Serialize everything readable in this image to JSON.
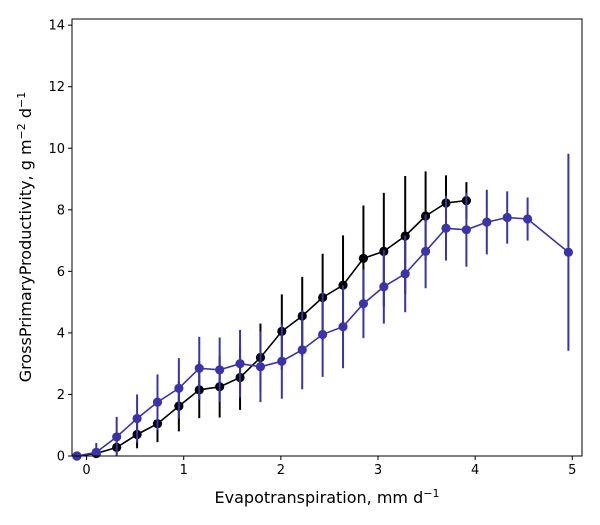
{
  "chart_data": {
    "type": "line",
    "title": "",
    "xlabel": "Evapotranspiration,  mm d",
    "xlabel_sup": "−1",
    "ylabel": "GrossPrimaryProductivity,  g m",
    "ylabel_sup1": "−2",
    "ylabel_mid": " d",
    "ylabel_sup2": "−1",
    "xlim": [
      -0.15,
      5.1
    ],
    "ylim": [
      0,
      14.2
    ],
    "xticks": [
      0,
      1,
      2,
      3,
      4,
      5
    ],
    "xtick_labels": [
      "0",
      "1",
      "2",
      "3",
      "4",
      "5"
    ],
    "yticks": [
      0,
      2,
      4,
      6,
      8,
      10,
      12,
      14
    ],
    "ytick_labels": [
      "0",
      "2",
      "4",
      "6",
      "8",
      "10",
      "12",
      "14"
    ],
    "grid": false,
    "series": [
      {
        "name": "black",
        "color": "#000000",
        "x": [
          -0.1,
          0.1,
          0.31,
          0.52,
          0.73,
          0.95,
          1.16,
          1.37,
          1.58,
          1.79,
          2.01,
          2.22,
          2.43,
          2.64,
          2.85,
          3.06,
          3.28,
          3.49,
          3.7,
          3.91
        ],
        "y": [
          0.0,
          0.08,
          0.28,
          0.7,
          1.05,
          1.62,
          2.15,
          2.25,
          2.55,
          3.2,
          4.05,
          4.55,
          5.15,
          5.55,
          6.42,
          6.65,
          7.15,
          7.8,
          8.22,
          8.3
        ],
        "err_low": [
          0.0,
          0.05,
          0.2,
          0.45,
          0.6,
          0.82,
          0.92,
          1.0,
          1.05,
          1.1,
          1.25,
          1.3,
          1.4,
          1.5,
          1.7,
          1.8,
          1.9,
          1.45,
          0.9,
          0.6
        ],
        "err_high": [
          0.0,
          0.05,
          0.2,
          0.45,
          0.6,
          0.82,
          0.92,
          1.0,
          1.05,
          1.1,
          1.2,
          1.27,
          1.42,
          1.62,
          1.72,
          1.9,
          1.95,
          1.45,
          0.9,
          0.6
        ]
      },
      {
        "name": "blue",
        "color": "#3a34a8",
        "x": [
          -0.1,
          0.1,
          0.31,
          0.52,
          0.73,
          0.95,
          1.16,
          1.37,
          1.58,
          1.79,
          2.01,
          2.22,
          2.43,
          2.64,
          2.85,
          3.06,
          3.28,
          3.49,
          3.7,
          3.91,
          4.12,
          4.33,
          4.54,
          4.96
        ],
        "y": [
          0.0,
          0.12,
          0.62,
          1.22,
          1.75,
          2.2,
          2.85,
          2.8,
          3.0,
          2.9,
          3.08,
          3.45,
          3.95,
          4.2,
          4.95,
          5.5,
          5.92,
          6.65,
          7.4,
          7.35,
          7.6,
          7.75,
          7.7,
          6.62
        ],
        "err_low": [
          0.0,
          0.3,
          0.65,
          0.78,
          0.9,
          0.98,
          1.02,
          1.05,
          1.1,
          1.15,
          1.22,
          1.28,
          1.38,
          1.35,
          1.12,
          1.2,
          1.25,
          1.2,
          1.05,
          1.2,
          1.05,
          0.85,
          0.7,
          3.2
        ],
        "err_high": [
          0.0,
          0.3,
          0.65,
          0.78,
          0.9,
          0.98,
          1.02,
          1.05,
          1.1,
          1.15,
          1.22,
          1.28,
          1.38,
          1.35,
          1.12,
          1.2,
          1.25,
          1.2,
          1.05,
          1.2,
          1.05,
          0.85,
          0.7,
          3.2
        ]
      }
    ]
  }
}
